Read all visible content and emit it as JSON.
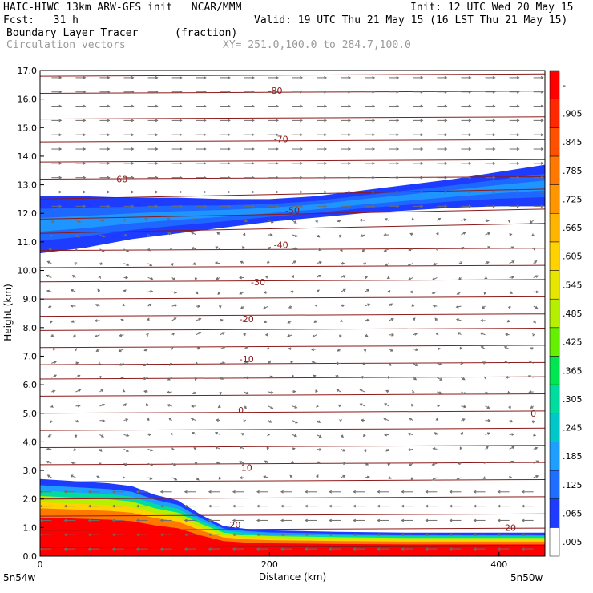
{
  "header": {
    "model_line": "HAIC-HIWC 13km ARW-GFS init   NCAR/MMM",
    "init_line": "Init: 12 UTC Wed 20 May 15",
    "fcst_line": "Fcst:   31 h",
    "valid_line": "Valid: 19 UTC Thu 21 May 15 (16 LST Thu 21 May 15)",
    "field_name": "Boundary Layer Tracer",
    "field_units": "(fraction)",
    "overlay_name": "Circulation vectors",
    "xsec_line": "XY= 251.0,100.0 to 284.7,100.0"
  },
  "chart_data": {
    "type": "heatmap",
    "xlabel": "Distance (km)",
    "ylabel": "Height (km)",
    "xlim": [
      0,
      440
    ],
    "ylim": [
      0,
      17
    ],
    "x_ticks": [
      "0",
      "200",
      "400"
    ],
    "y_ticks": [
      "0.0",
      "1.0",
      "2.0",
      "3.0",
      "4.0",
      "5.0",
      "6.0",
      "7.0",
      "8.0",
      "9.0",
      "10.0",
      "11.0",
      "12.0",
      "13.0",
      "14.0",
      "15.0",
      "16.0",
      "17.0"
    ],
    "corner_labels": {
      "left": "5n54w",
      "right": "5n50w"
    },
    "colorbar": {
      "labels": [
        ".005",
        ".065",
        ".125",
        ".185",
        ".245",
        ".305",
        ".365",
        ".425",
        ".485",
        ".545",
        ".605",
        ".665",
        ".725",
        ".785",
        ".845",
        ".905",
        "-"
      ],
      "colors": [
        "#ffffff",
        "#1e3cff",
        "#1e6eff",
        "#1e9eff",
        "#00c8c8",
        "#00dca0",
        "#00e650",
        "#64f000",
        "#b4f000",
        "#e6e600",
        "#ffd200",
        "#ffb400",
        "#ff9600",
        "#ff7800",
        "#ff5000",
        "#ff2800",
        "#ff0000"
      ]
    },
    "isotherm_labels": [
      {
        "value": "-80",
        "x": 205,
        "y": 16.3
      },
      {
        "value": "-70",
        "x": 210,
        "y": 14.6
      },
      {
        "value": "-60",
        "x": 70,
        "y": 13.2
      },
      {
        "value": "-50",
        "x": 220,
        "y": 12.1
      },
      {
        "value": "-40",
        "x": 210,
        "y": 10.9
      },
      {
        "value": "-30",
        "x": 190,
        "y": 9.6
      },
      {
        "value": "-20",
        "x": 180,
        "y": 8.3
      },
      {
        "value": "-10",
        "x": 180,
        "y": 6.9
      },
      {
        "value": "0",
        "x": 175,
        "y": 5.1
      },
      {
        "value": "0",
        "x": 430,
        "y": 5.0
      },
      {
        "value": "10",
        "x": 180,
        "y": 3.1
      },
      {
        "value": "20",
        "x": 170,
        "y": 1.1
      },
      {
        "value": "20",
        "x": 410,
        "y": 1.0
      }
    ],
    "isotherm_heights": [
      16.8,
      16.2,
      15.3,
      14.5,
      13.8,
      13.2,
      12.5,
      11.8,
      11.3,
      10.7,
      10.1,
      9.6,
      9.0,
      8.4,
      7.9,
      7.3,
      6.7,
      6.2,
      5.6,
      5.0,
      4.4,
      3.8,
      3.2,
      2.6,
      2.0,
      1.4,
      0.9,
      0.3
    ],
    "blh_profile": {
      "x": [
        0,
        20,
        40,
        60,
        80,
        100,
        120,
        140,
        160,
        180,
        200,
        260,
        320,
        380,
        440
      ],
      "top": [
        2.7,
        2.65,
        2.6,
        2.55,
        2.45,
        2.15,
        1.95,
        1.45,
        1.05,
        0.95,
        0.9,
        0.85,
        0.82,
        0.82,
        0.82
      ]
    },
    "cirrus_band": {
      "x": [
        0,
        40,
        80,
        120,
        160,
        200,
        240,
        280,
        320,
        360,
        400,
        440
      ],
      "top": [
        12.6,
        12.6,
        12.55,
        12.55,
        12.5,
        12.5,
        12.6,
        12.8,
        13.0,
        13.2,
        13.45,
        13.7
      ],
      "bottom": [
        10.6,
        10.8,
        11.1,
        11.3,
        11.5,
        11.7,
        11.85,
        12.0,
        12.1,
        12.2,
        12.25,
        12.25
      ]
    }
  }
}
